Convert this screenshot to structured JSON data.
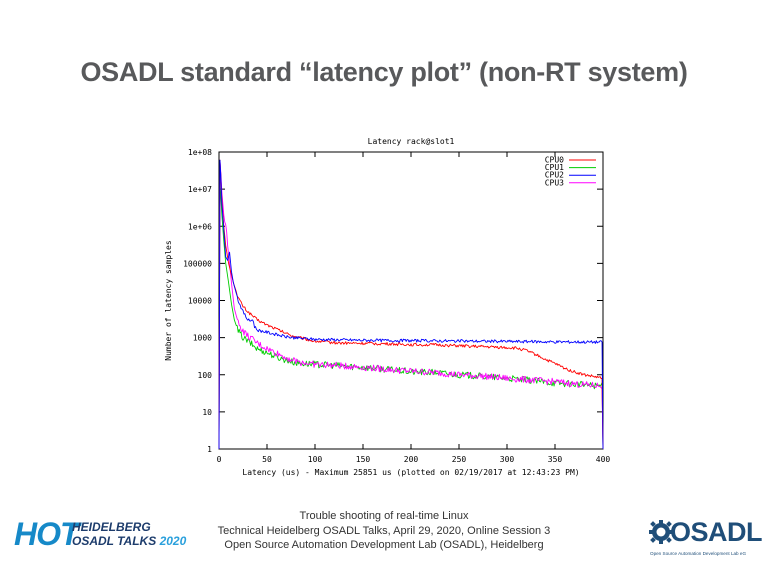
{
  "slide": {
    "title": "OSADL standard “latency plot” (non-RT system)"
  },
  "footer": {
    "line1": "Trouble shooting of real-time Linux",
    "line2": "Technical Heidelberg OSADL Talks, April 29, 2020, Online Session 3",
    "line3": "Open Source Automation Development Lab (OSADL), Heidelberg"
  },
  "logos": {
    "hot": {
      "word": "HOT",
      "line1": "HEIDELBERG",
      "line2_a": "OSADL TALKS",
      "line2_b": "2020"
    },
    "osadl": {
      "word": "OSADL",
      "tagline": "Open Source Automation Development Lab eG"
    }
  },
  "chart_data": {
    "type": "line",
    "title": "Latency rack@slot1",
    "xlabel": "Latency (us) - Maximum 25851 us (plotted on 02/19/2017 at 12:43:23 PM)",
    "ylabel": "Number of latency samples",
    "xlim": [
      0,
      400
    ],
    "ylim": [
      1,
      100000000
    ],
    "yscale": "log",
    "xticks": [
      0,
      50,
      100,
      150,
      200,
      250,
      300,
      350,
      400
    ],
    "xtick_labels": [
      "0",
      "50",
      "100",
      "150",
      "200",
      "250",
      "300",
      "350",
      "400"
    ],
    "yticks": [
      1,
      10,
      100,
      1000,
      10000,
      100000,
      1000000,
      10000000,
      100000000
    ],
    "ytick_labels": [
      "1",
      "10",
      "100",
      "1000",
      "10000",
      "100000",
      "1e+06",
      "1e+07",
      "1e+08"
    ],
    "grid": false,
    "legend_position": "top-right",
    "series": [
      {
        "name": "CPU0",
        "color": "#ff0000",
        "noise": 0.04,
        "points": [
          [
            1,
            60000000
          ],
          [
            2,
            20000000
          ],
          [
            3,
            5000000
          ],
          [
            5,
            1000000
          ],
          [
            7,
            300000
          ],
          [
            10,
            100000
          ],
          [
            15,
            30000
          ],
          [
            20,
            12000
          ],
          [
            25,
            7000
          ],
          [
            30,
            5000
          ],
          [
            40,
            3000
          ],
          [
            50,
            2200
          ],
          [
            60,
            1700
          ],
          [
            70,
            1300
          ],
          [
            80,
            1050
          ],
          [
            100,
            800
          ],
          [
            125,
            720
          ],
          [
            150,
            700
          ],
          [
            175,
            680
          ],
          [
            200,
            650
          ],
          [
            225,
            640
          ],
          [
            250,
            600
          ],
          [
            275,
            570
          ],
          [
            300,
            540
          ],
          [
            310,
            520
          ],
          [
            320,
            450
          ],
          [
            330,
            350
          ],
          [
            340,
            260
          ],
          [
            350,
            200
          ],
          [
            360,
            150
          ],
          [
            370,
            120
          ],
          [
            380,
            100
          ],
          [
            390,
            90
          ],
          [
            399,
            80
          ]
        ]
      },
      {
        "name": "CPU1",
        "color": "#00cc00",
        "noise": 0.09,
        "points": [
          [
            1,
            15000000
          ],
          [
            2,
            6000000
          ],
          [
            3,
            2000000
          ],
          [
            5,
            400000
          ],
          [
            7,
            100000
          ],
          [
            10,
            30000
          ],
          [
            13,
            8000
          ],
          [
            16,
            3000
          ],
          [
            20,
            1500
          ],
          [
            25,
            1000
          ],
          [
            30,
            800
          ],
          [
            40,
            500
          ],
          [
            50,
            400
          ],
          [
            60,
            300
          ],
          [
            70,
            250
          ],
          [
            80,
            210
          ],
          [
            100,
            190
          ],
          [
            125,
            175
          ],
          [
            150,
            160
          ],
          [
            175,
            140
          ],
          [
            200,
            120
          ],
          [
            225,
            115
          ],
          [
            250,
            100
          ],
          [
            275,
            90
          ],
          [
            300,
            80
          ],
          [
            325,
            70
          ],
          [
            350,
            60
          ],
          [
            375,
            55
          ],
          [
            399,
            50
          ]
        ]
      },
      {
        "name": "CPU2",
        "color": "#0000ff",
        "noise": 0.04,
        "points": [
          [
            1,
            60000000
          ],
          [
            2,
            20000000
          ],
          [
            3,
            4000000
          ],
          [
            5,
            800000
          ],
          [
            7,
            150000
          ],
          [
            9,
            120000
          ],
          [
            11,
            200000
          ],
          [
            13,
            60000
          ],
          [
            15,
            30000
          ],
          [
            20,
            10000
          ],
          [
            25,
            5000
          ],
          [
            30,
            3000
          ],
          [
            33,
            2800
          ],
          [
            35,
            3200
          ],
          [
            37,
            2000
          ],
          [
            40,
            1600
          ],
          [
            50,
            1400
          ],
          [
            60,
            1200
          ],
          [
            70,
            1050
          ],
          [
            80,
            980
          ],
          [
            100,
            900
          ],
          [
            150,
            850
          ],
          [
            200,
            830
          ],
          [
            250,
            810
          ],
          [
            300,
            790
          ],
          [
            350,
            770
          ],
          [
            399,
            760
          ]
        ]
      },
      {
        "name": "CPU3",
        "color": "#ff00ff",
        "noise": 0.09,
        "points": [
          [
            1,
            60000000
          ],
          [
            2,
            25000000
          ],
          [
            3,
            8000000
          ],
          [
            5,
            2000000
          ],
          [
            6,
            1300000
          ],
          [
            7,
            1100000
          ],
          [
            8,
            700000
          ],
          [
            9,
            300000
          ],
          [
            11,
            100000
          ],
          [
            13,
            30000
          ],
          [
            16,
            6000
          ],
          [
            20,
            2500
          ],
          [
            25,
            1500
          ],
          [
            30,
            1100
          ],
          [
            40,
            700
          ],
          [
            50,
            500
          ],
          [
            60,
            380
          ],
          [
            70,
            290
          ],
          [
            80,
            230
          ],
          [
            100,
            190
          ],
          [
            125,
            175
          ],
          [
            150,
            160
          ],
          [
            175,
            140
          ],
          [
            200,
            125
          ],
          [
            225,
            115
          ],
          [
            250,
            100
          ],
          [
            275,
            92
          ],
          [
            300,
            80
          ],
          [
            325,
            72
          ],
          [
            350,
            65
          ],
          [
            375,
            55
          ],
          [
            399,
            50
          ]
        ]
      }
    ]
  }
}
